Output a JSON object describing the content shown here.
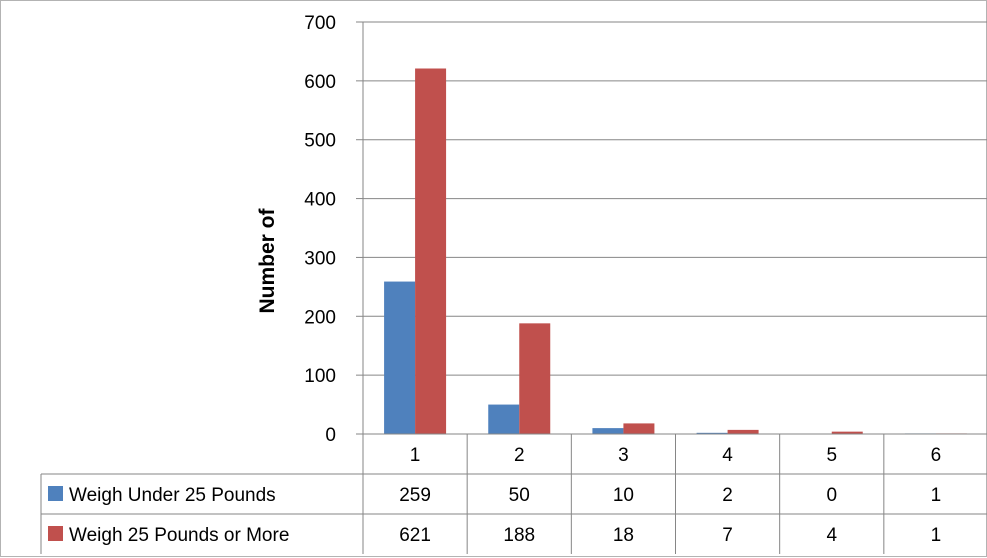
{
  "chart_data": {
    "type": "bar",
    "categories": [
      "1",
      "2",
      "3",
      "4",
      "5",
      "6"
    ],
    "series": [
      {
        "name": "Weigh Under 25 Pounds",
        "values": [
          259,
          50,
          10,
          2,
          0,
          1
        ],
        "color": "#4f81bd"
      },
      {
        "name": "Weigh 25 Pounds or More",
        "values": [
          621,
          188,
          18,
          7,
          4,
          1
        ],
        "color": "#c0504d"
      }
    ],
    "title": "",
    "xlabel": "",
    "ylabel": "Number of",
    "ylim": [
      0,
      700
    ],
    "yticks": [
      0,
      100,
      200,
      300,
      400,
      500,
      600,
      700
    ],
    "grid": true,
    "legend": "data-table",
    "gridline_color": "#868686"
  }
}
